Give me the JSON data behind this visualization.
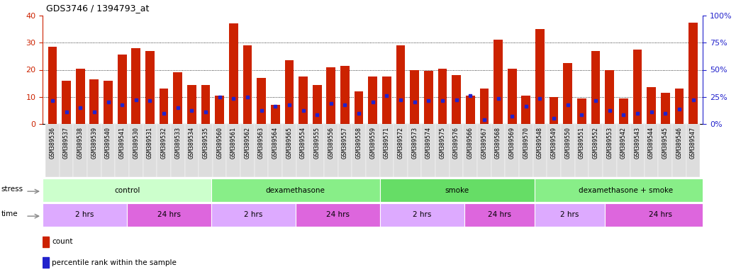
{
  "title": "GDS3746 / 1394793_at",
  "samples": [
    "GSM389536",
    "GSM389537",
    "GSM389538",
    "GSM389539",
    "GSM389540",
    "GSM389541",
    "GSM389530",
    "GSM389531",
    "GSM389532",
    "GSM389533",
    "GSM389534",
    "GSM389535",
    "GSM389560",
    "GSM389561",
    "GSM389562",
    "GSM389563",
    "GSM389564",
    "GSM389565",
    "GSM389554",
    "GSM389555",
    "GSM389556",
    "GSM389557",
    "GSM389558",
    "GSM389559",
    "GSM389571",
    "GSM389572",
    "GSM389573",
    "GSM389574",
    "GSM389575",
    "GSM389576",
    "GSM389566",
    "GSM389567",
    "GSM389568",
    "GSM389569",
    "GSM389570",
    "GSM389548",
    "GSM389549",
    "GSM389550",
    "GSM389551",
    "GSM389552",
    "GSM389553",
    "GSM389542",
    "GSM389543",
    "GSM389544",
    "GSM389545",
    "GSM389546",
    "GSM389547"
  ],
  "counts": [
    28.5,
    16.0,
    20.5,
    16.5,
    16.0,
    25.5,
    28.0,
    27.0,
    13.0,
    19.0,
    14.5,
    14.5,
    10.5,
    37.0,
    29.0,
    17.0,
    7.0,
    23.5,
    17.5,
    14.5,
    21.0,
    21.5,
    12.0,
    17.5,
    17.5,
    29.0,
    20.0,
    19.5,
    20.5,
    18.0,
    10.5,
    13.0,
    31.0,
    20.5,
    10.5,
    35.0,
    10.0,
    22.5,
    9.5,
    27.0,
    20.0,
    9.5,
    27.5,
    13.5,
    11.5,
    13.0,
    37.5
  ],
  "percentile_ranks": [
    8.5,
    4.5,
    6.0,
    4.5,
    8.0,
    7.0,
    9.0,
    8.5,
    4.0,
    6.0,
    5.0,
    4.5,
    10.0,
    9.5,
    10.0,
    5.0,
    6.5,
    7.0,
    5.0,
    3.5,
    7.5,
    7.0,
    4.0,
    8.0,
    10.5,
    9.0,
    8.0,
    8.5,
    8.5,
    9.0,
    10.5,
    1.5,
    9.5,
    3.0,
    6.5,
    9.5,
    2.0,
    7.0,
    3.5,
    8.5,
    5.0,
    3.5,
    4.0,
    4.5,
    4.0,
    5.5,
    9.0
  ],
  "ylim_left": [
    0,
    40
  ],
  "ylim_right": [
    0,
    100
  ],
  "yticks_left": [
    0,
    10,
    20,
    30,
    40
  ],
  "yticks_right": [
    0,
    25,
    50,
    75,
    100
  ],
  "bar_color": "#cc2200",
  "dot_color": "#2222cc",
  "groups": [
    {
      "label": "control",
      "start": 0,
      "end": 11,
      "color": "#ccffcc"
    },
    {
      "label": "dexamethasone",
      "start": 12,
      "end": 23,
      "color": "#88ee88"
    },
    {
      "label": "smoke",
      "start": 24,
      "end": 34,
      "color": "#66dd66"
    },
    {
      "label": "dexamethasone + smoke",
      "start": 35,
      "end": 47,
      "color": "#88ee88"
    }
  ],
  "time_groups": [
    {
      "label": "2 hrs",
      "start": 0,
      "end": 5,
      "color": "#ddaaff"
    },
    {
      "label": "24 hrs",
      "start": 6,
      "end": 11,
      "color": "#dd66dd"
    },
    {
      "label": "2 hrs",
      "start": 12,
      "end": 17,
      "color": "#ddaaff"
    },
    {
      "label": "24 hrs",
      "start": 18,
      "end": 23,
      "color": "#dd66dd"
    },
    {
      "label": "2 hrs",
      "start": 24,
      "end": 29,
      "color": "#ddaaff"
    },
    {
      "label": "24 hrs",
      "start": 30,
      "end": 34,
      "color": "#dd66dd"
    },
    {
      "label": "2 hrs",
      "start": 35,
      "end": 39,
      "color": "#ddaaff"
    },
    {
      "label": "24 hrs",
      "start": 40,
      "end": 47,
      "color": "#dd66dd"
    }
  ],
  "bg_color": "#ffffff",
  "plot_bg_color": "#ffffff",
  "tick_area_color": "#e8e8e8",
  "title_fontsize": 9,
  "tick_fontsize": 6,
  "label_fontsize": 7.5
}
